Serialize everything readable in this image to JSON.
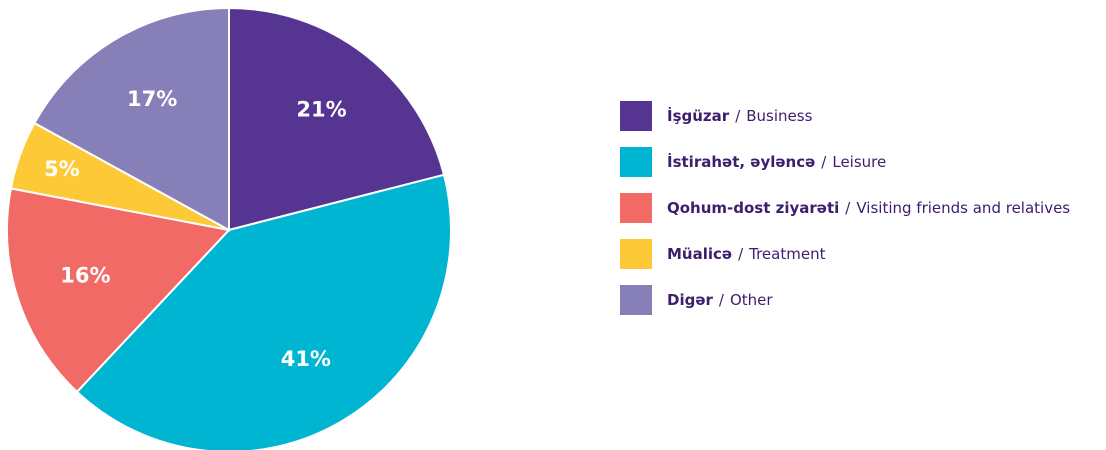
{
  "chart_data": {
    "type": "pie",
    "categories": [
      "İşgüzar",
      "İstirahət, əyləncə",
      "Qohum-dost ziyarəti",
      "Müalicə",
      "Digər"
    ],
    "translations": [
      "Business",
      "Leisure",
      "Visiting friends and relatives",
      "Treatment",
      "Other"
    ],
    "legend_separator": "/",
    "values": [
      21,
      41,
      16,
      5,
      17
    ],
    "value_labels": [
      "21%",
      "41%",
      "16%",
      "5%",
      "17%"
    ],
    "colors": [
      "#563592",
      "#00b5d1",
      "#f26a65",
      "#fdc936",
      "#8780b8"
    ],
    "legend": "right"
  }
}
